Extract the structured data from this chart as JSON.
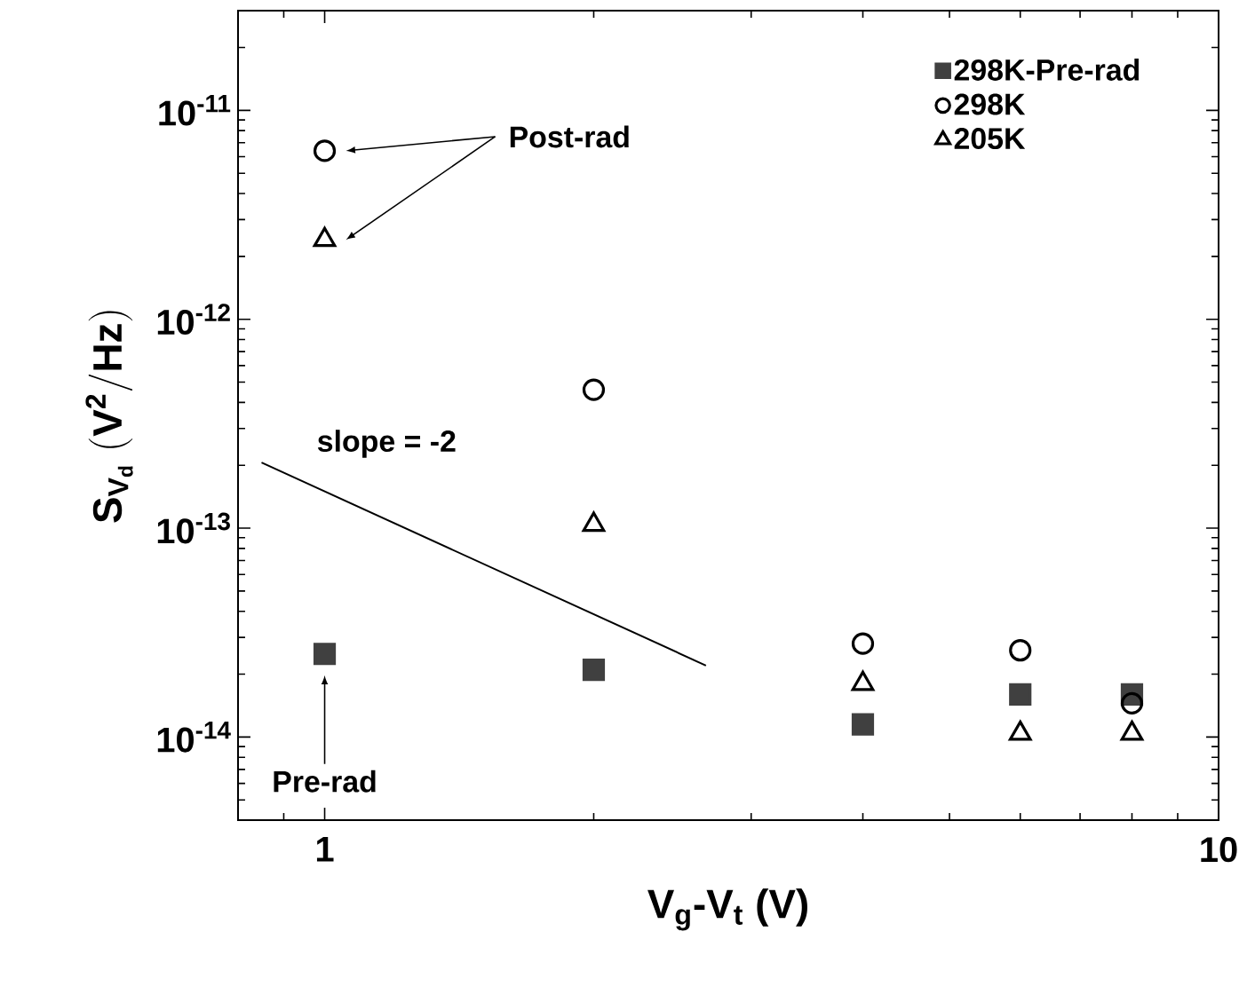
{
  "chart_data": {
    "type": "scatter",
    "xlabel": "V$_{g}$-V$_{t}$ (V)",
    "ylabel": "\\mathbf{S_{V_{d}}\\ (V^{2}/Hz)}",
    "log": "xy",
    "xlim": [
      0.8,
      10
    ],
    "ylim": [
      4e-15,
      3e-11
    ],
    "xticks": [
      1,
      10
    ],
    "yticks": [
      {
        "value": 1e-14,
        "label": "10$^{-14}$"
      },
      {
        "value": 1e-13,
        "label": "10$^{-13}$"
      },
      {
        "value": 1e-12,
        "label": "10$^{-12}$"
      },
      {
        "value": 1e-11,
        "label": "10$^{-11}$"
      }
    ],
    "legend": "top right",
    "grid": false,
    "series": [
      {
        "name": "298K-Pre-rad",
        "color": "#404040",
        "marker": "square",
        "x": [
          1,
          2,
          4,
          6,
          8
        ],
        "values": [
          2.5e-14,
          2.1e-14,
          1.15e-14,
          1.6e-14,
          1.6e-14
        ]
      },
      {
        "name": "298K",
        "color": "#000000",
        "marker": "circle",
        "x": [
          1,
          2,
          4,
          6,
          8
        ],
        "values": [
          6.4e-12,
          4.6e-13,
          2.8e-14,
          2.6e-14,
          1.45e-14
        ]
      },
      {
        "name": "205K",
        "color": "#000000",
        "marker": "triangle",
        "x": [
          1,
          2,
          4,
          6,
          8
        ],
        "values": [
          2.4e-12,
          1.04e-13,
          1.8e-14,
          1.04e-14,
          1.04e-14
        ]
      },
      {
        "type": "line",
        "color": "#000000",
        "marker": "none",
        "x": [
          0.85,
          2.67
        ],
        "values": [
          2.06e-13,
          2.2e-14
        ]
      }
    ],
    "annotations": [
      "Post-rad",
      "Pre-rad",
      "slope = -2"
    ]
  }
}
